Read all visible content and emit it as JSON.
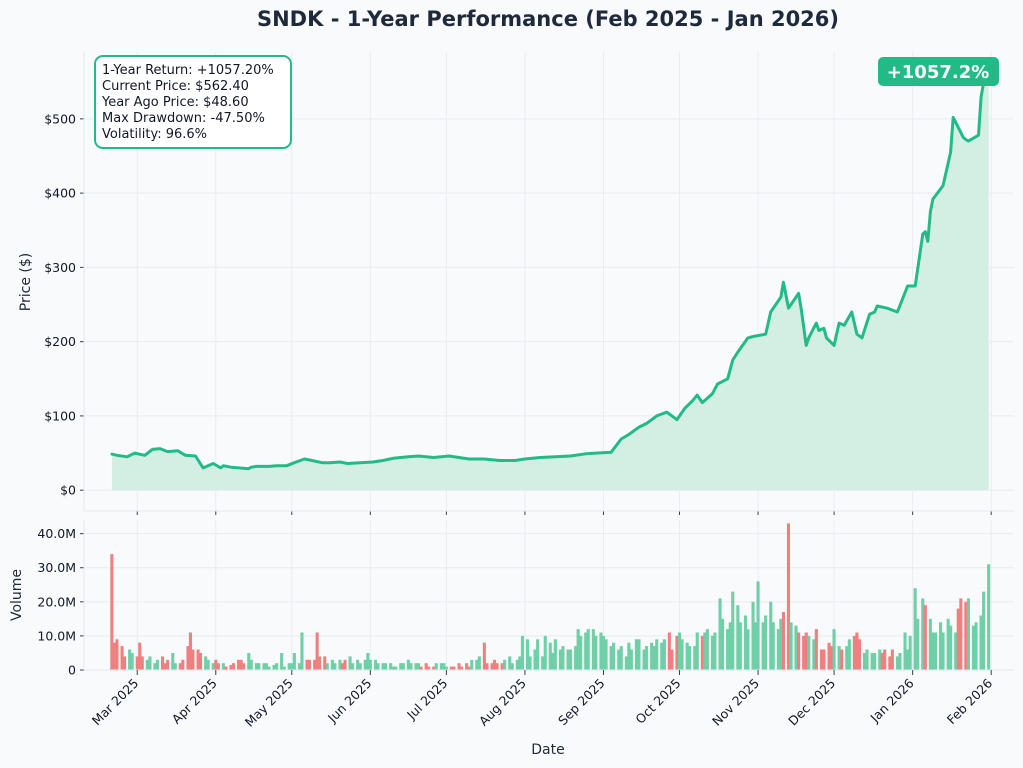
{
  "title": "SNDK - 1-Year Performance (Feb 2025 - Jan 2026)",
  "colors": {
    "line": "#22bb88",
    "fill": "#d3efe3",
    "up": "#6fcfa6",
    "down": "#ef8080",
    "grid": "#e8edf2",
    "background": "#f8fafc",
    "badge": "#22bb88"
  },
  "stats_box": {
    "lines": [
      "1-Year Return: +1057.20%",
      "Current Price: $562.40",
      "Year Ago Price: $48.60",
      "Max Drawdown: -47.50%",
      "Volatility: 96.6%"
    ]
  },
  "badge": {
    "text": "+1057.2%"
  },
  "chart_data": [
    {
      "type": "area",
      "title": "SNDK - 1-Year Performance (Feb 2025 - Jan 2026)",
      "ylabel": "Price ($)",
      "xlabel": "",
      "grid": true,
      "ylim": [
        -28,
        590
      ],
      "xlim": [
        "2025-02-08",
        "2026-02-10"
      ],
      "yticks": [
        0,
        100,
        200,
        300,
        400,
        500
      ],
      "ytick_labels": [
        "$0",
        "$100",
        "$200",
        "$300",
        "$400",
        "$500"
      ],
      "series": [
        {
          "x": [
            "2025-02-19",
            "2025-02-21",
            "2025-02-25",
            "2025-02-28",
            "2025-03-04",
            "2025-03-07",
            "2025-03-10",
            "2025-03-13",
            "2025-03-17",
            "2025-03-20",
            "2025-03-24",
            "2025-03-27",
            "2025-03-31",
            "2025-04-03",
            "2025-04-04",
            "2025-04-07",
            "2025-04-10",
            "2025-04-14",
            "2025-04-15",
            "2025-04-17",
            "2025-04-22",
            "2025-04-25",
            "2025-04-29",
            "2025-05-02",
            "2025-05-06",
            "2025-05-09",
            "2025-05-13",
            "2025-05-16",
            "2025-05-20",
            "2025-05-23",
            "2025-05-28",
            "2025-06-02",
            "2025-06-06",
            "2025-06-10",
            "2025-06-16",
            "2025-06-20",
            "2025-06-26",
            "2025-07-02",
            "2025-07-10",
            "2025-07-16",
            "2025-07-22",
            "2025-07-28",
            "2025-08-01",
            "2025-08-07",
            "2025-08-13",
            "2025-08-19",
            "2025-08-25",
            "2025-08-29",
            "2025-09-04",
            "2025-09-08",
            "2025-09-11",
            "2025-09-15",
            "2025-09-18",
            "2025-09-22",
            "2025-09-26",
            "2025-09-30",
            "2025-10-03",
            "2025-10-06",
            "2025-10-08",
            "2025-10-10",
            "2025-10-14",
            "2025-10-16",
            "2025-10-20",
            "2025-10-22",
            "2025-10-24",
            "2025-10-28",
            "2025-10-30",
            "2025-11-04",
            "2025-11-06",
            "2025-11-10",
            "2025-11-11",
            "2025-11-13",
            "2025-11-17",
            "2025-11-18",
            "2025-11-20",
            "2025-11-21",
            "2025-11-24",
            "2025-11-25",
            "2025-11-27",
            "2025-11-28",
            "2025-12-01",
            "2025-12-03",
            "2025-12-05",
            "2025-12-08",
            "2025-12-10",
            "2025-12-12",
            "2025-12-15",
            "2025-12-17",
            "2025-12-18",
            "2025-12-22",
            "2025-12-26",
            "2025-12-30",
            "2026-01-02",
            "2026-01-05",
            "2026-01-06",
            "2026-01-07",
            "2026-01-08",
            "2026-01-09",
            "2026-01-13",
            "2026-01-16",
            "2026-01-17",
            "2026-01-21",
            "2026-01-22",
            "2026-01-23",
            "2026-01-27",
            "2026-01-28",
            "2026-01-29",
            "2026-01-31"
          ],
          "values": [
            48.6,
            47,
            45,
            50,
            47,
            55,
            56,
            52,
            53,
            47,
            46,
            30,
            36,
            30,
            33,
            31,
            30,
            29,
            31,
            32,
            32,
            33,
            33,
            37,
            42,
            40,
            37,
            37,
            38,
            36,
            37,
            38,
            40,
            43,
            45,
            46,
            44,
            46,
            42,
            42,
            40,
            40,
            42,
            44,
            45,
            46,
            49,
            50,
            51,
            69,
            75,
            85,
            90,
            100,
            105,
            95,
            110,
            120,
            128,
            118,
            130,
            143,
            150,
            175,
            186,
            205,
            207,
            210,
            240,
            260,
            280,
            245,
            265,
            245,
            195,
            205,
            225,
            215,
            218,
            205,
            195,
            225,
            222,
            240,
            210,
            205,
            237,
            240,
            248,
            245,
            240,
            275,
            275,
            345,
            348,
            335,
            375,
            392,
            410,
            455,
            502,
            475,
            472,
            470,
            478,
            530,
            548,
            562.4
          ]
        }
      ]
    },
    {
      "type": "bar",
      "ylabel": "Volume",
      "xlabel": "Date",
      "grid": true,
      "ylim": [
        0,
        44000000
      ],
      "yticks": [
        0,
        10000000,
        20000000,
        30000000,
        40000000
      ],
      "ytick_labels": [
        "0",
        "10.0M",
        "20.0M",
        "30.0M",
        "40.0M"
      ],
      "xticks": [
        "2025-03-01",
        "2025-04-01",
        "2025-05-01",
        "2025-06-01",
        "2025-07-01",
        "2025-08-01",
        "2025-09-01",
        "2025-10-01",
        "2025-11-01",
        "2025-12-01",
        "2026-01-01",
        "2026-02-01"
      ],
      "xtick_labels": [
        "Mar 2025",
        "Apr 2025",
        "May 2025",
        "Jun 2025",
        "Jul 2025",
        "Aug 2025",
        "Sep 2025",
        "Oct 2025",
        "Nov 2025",
        "Dec 2025",
        "Jan 2026",
        "Feb 2026"
      ],
      "legend": "none",
      "series": [
        {
          "values_by_segment": [
            [
              34,
              8,
              9,
              7,
              4,
              6,
              5,
              4,
              8,
              4,
              3,
              4,
              2,
              3,
              4,
              2,
              3,
              5,
              2,
              2,
              3,
              7,
              11,
              6,
              6,
              5,
              4,
              3,
              2,
              3,
              2,
              2,
              1,
              1.5,
              2,
              3,
              3,
              2,
              5,
              3,
              2,
              2,
              2,
              2,
              1,
              1.5,
              2,
              5,
              1,
              2,
              2,
              5,
              2,
              11,
              3,
              3,
              3,
              11,
              4,
              4,
              2,
              3,
              2,
              3,
              2,
              3,
              4,
              2,
              3,
              2,
              3,
              5
            ],
            [
              3,
              3,
              2,
              2,
              2,
              2,
              1,
              1,
              2,
              2,
              3,
              2,
              2,
              2,
              1,
              2,
              1,
              1,
              2,
              2,
              2,
              1,
              1,
              1,
              2,
              1,
              2,
              1,
              3,
              3,
              4,
              8,
              2,
              2,
              3,
              2,
              2,
              3,
              4,
              2,
              3,
              4,
              10,
              9,
              4,
              6,
              9,
              4,
              10,
              8,
              5,
              9,
              6,
              7,
              6,
              6,
              7,
              12,
              10,
              11,
              12,
              12,
              10,
              11,
              10,
              9,
              7,
              8,
              6,
              7,
              4,
              8,
              6,
              9,
              9,
              6,
              7,
              8,
              7,
              9,
              8,
              9,
              11,
              6,
              10,
              11,
              9,
              8,
              7,
              7,
              11,
              10,
              11,
              12,
              10,
              11,
              21,
              15,
              12,
              14,
              23,
              19,
              14,
              16,
              12,
              20,
              14,
              26,
              14,
              16,
              20,
              14,
              12,
              15,
              17,
              43,
              14,
              13,
              11,
              10,
              11,
              10,
              9,
              12,
              6,
              6,
              8,
              7,
              12,
              7,
              6,
              7,
              9,
              10,
              11,
              9,
              5,
              6,
              5,
              5,
              6,
              5,
              6,
              4,
              6,
              4,
              5,
              11,
              6,
              10,
              24,
              15,
              21,
              19,
              15,
              11,
              11,
              14,
              11,
              15,
              13,
              11,
              18,
              21,
              20,
              21,
              13,
              14,
              16,
              23,
              31
            ]
          ]
        }
      ]
    }
  ]
}
